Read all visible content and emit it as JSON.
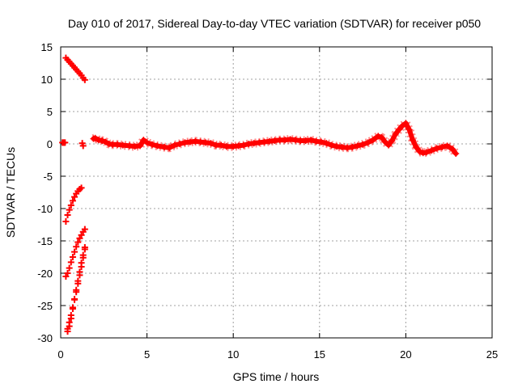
{
  "chart_data": {
    "type": "scatter",
    "title": "Day 010 of 2017, Sidereal Day-to-day VTEC variation (SDTVAR) for receiver p050",
    "xlabel": "GPS time / hours",
    "ylabel": "SDTVAR / TECUs",
    "xlim": [
      0,
      25
    ],
    "ylim": [
      -30,
      15
    ],
    "xticks": [
      0,
      5,
      10,
      15,
      20,
      25
    ],
    "yticks": [
      -30,
      -25,
      -20,
      -15,
      -10,
      -5,
      0,
      5,
      10,
      15
    ],
    "grid": true,
    "marker": "+",
    "series": [
      {
        "name": "SDTVAR",
        "color": "#ff0000",
        "x": [
          0.1,
          0.15,
          0.2,
          0.25,
          1.25,
          1.3,
          0.3,
          0.4,
          0.5,
          0.6,
          0.7,
          0.8,
          0.9,
          1.0,
          1.1,
          1.2,
          1.3,
          1.4,
          0.3,
          0.4,
          0.5,
          0.6,
          0.7,
          0.8,
          0.9,
          1.0,
          1.1,
          1.2,
          0.3,
          0.4,
          0.5,
          0.6,
          0.7,
          0.8,
          0.9,
          1.0,
          1.1,
          1.2,
          1.3,
          1.4,
          0.4,
          0.5,
          0.6,
          0.7,
          0.8,
          0.9,
          1.0,
          1.1,
          1.2,
          1.3,
          1.4,
          0.4,
          0.5,
          0.6,
          0.7,
          0.8,
          0.9,
          1.0,
          1.1,
          1.2,
          1.3,
          1.4
        ],
        "y": [
          0.2,
          0.2,
          0.2,
          0.2,
          0.1,
          -0.3,
          13.3,
          13.0,
          12.7,
          12.4,
          12.1,
          11.8,
          11.5,
          11.2,
          10.9,
          10.6,
          10.2,
          9.9,
          -12.0,
          -11.0,
          -10.2,
          -9.5,
          -8.8,
          -8.2,
          -7.7,
          -7.3,
          -7.0,
          -6.8,
          -20.5,
          -20.0,
          -19.2,
          -18.3,
          -17.5,
          -16.7,
          -15.9,
          -15.2,
          -14.6,
          -14.1,
          -13.6,
          -13.2,
          -29.0,
          -28.2,
          -27.0,
          -25.5,
          -24.0,
          -22.6,
          -21.2,
          -19.8,
          -18.4,
          -17.2,
          -16.0,
          -28.6,
          -27.6,
          -26.5,
          -25.3,
          -24.1,
          -22.9,
          -21.6,
          -20.3,
          -19.0,
          -17.6,
          -16.3
        ]
      }
    ],
    "continuous_trace": {
      "x": [
        1.9,
        2.0,
        2.2,
        2.4,
        2.6,
        2.8,
        3.0,
        3.3,
        3.6,
        4.0,
        4.3,
        4.6,
        4.8,
        5.0,
        5.3,
        5.6,
        6.0,
        6.3,
        6.6,
        6.9,
        7.2,
        7.5,
        7.8,
        8.1,
        8.4,
        8.7,
        9.0,
        9.3,
        9.6,
        10.0,
        10.3,
        10.6,
        10.9,
        11.2,
        11.5,
        11.8,
        12.1,
        12.4,
        12.7,
        13.0,
        13.3,
        13.6,
        13.9,
        14.2,
        14.5,
        14.8,
        15.1,
        15.4,
        15.7,
        16.0,
        16.3,
        16.6,
        16.9,
        17.2,
        17.5,
        17.8,
        18.1,
        18.4,
        18.6,
        18.8,
        19.0,
        19.2,
        19.4,
        19.6,
        19.8,
        20.0,
        20.2,
        20.4,
        20.6,
        20.8,
        21.0,
        21.2,
        21.5,
        21.8,
        22.1,
        22.4,
        22.7,
        22.9
      ],
      "y": [
        0.8,
        0.9,
        0.6,
        0.5,
        0.3,
        0.0,
        -0.1,
        -0.1,
        -0.2,
        -0.3,
        -0.4,
        -0.3,
        0.6,
        0.2,
        -0.1,
        -0.3,
        -0.5,
        -0.6,
        -0.2,
        0.0,
        0.2,
        0.3,
        0.4,
        0.3,
        0.2,
        0.1,
        -0.2,
        -0.2,
        -0.4,
        -0.4,
        -0.3,
        -0.2,
        0.0,
        0.1,
        0.2,
        0.3,
        0.4,
        0.5,
        0.6,
        0.6,
        0.7,
        0.6,
        0.5,
        0.5,
        0.6,
        0.4,
        0.3,
        0.1,
        -0.2,
        -0.4,
        -0.5,
        -0.6,
        -0.5,
        -0.3,
        -0.1,
        0.2,
        0.6,
        1.2,
        1.0,
        0.3,
        -0.2,
        0.5,
        1.5,
        2.2,
        2.8,
        3.2,
        2.2,
        0.6,
        -0.5,
        -1.2,
        -1.4,
        -1.3,
        -1.0,
        -0.7,
        -0.5,
        -0.3,
        -0.8,
        -1.5
      ]
    }
  }
}
